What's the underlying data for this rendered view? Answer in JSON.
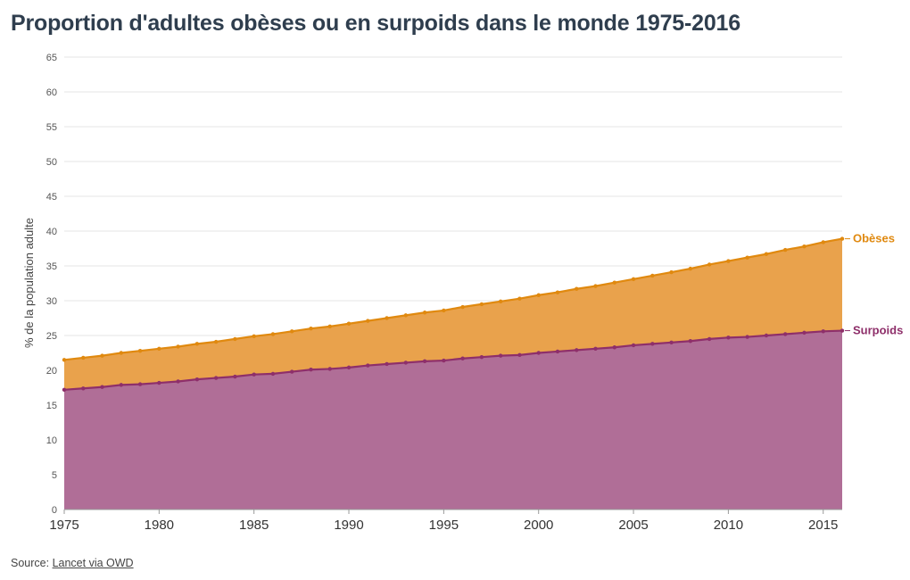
{
  "title": "Proportion d'adultes obèses ou en surpoids dans le monde 1975-2016",
  "source": {
    "prefix": "Source: ",
    "link_text": "Lancet via OWD"
  },
  "colors": {
    "surpoids": "#8e2f6a",
    "obeses": "#e0890f",
    "surpoids_fill": "#b06e97",
    "obeses_fill": "#e9a24c"
  },
  "chart_data": {
    "type": "area",
    "stacked": true,
    "ylabel": "% de la population adulte",
    "xlabel": "",
    "ylim": [
      0,
      65
    ],
    "xlim": [
      1975,
      2016
    ],
    "yticks": [
      0,
      5,
      10,
      15,
      20,
      25,
      30,
      35,
      40,
      45,
      50,
      55,
      60,
      65
    ],
    "xticks": [
      1975,
      1980,
      1985,
      1990,
      1995,
      2000,
      2005,
      2010,
      2015
    ],
    "grid": true,
    "x": [
      1975,
      1976,
      1977,
      1978,
      1979,
      1980,
      1981,
      1982,
      1983,
      1984,
      1985,
      1986,
      1987,
      1988,
      1989,
      1990,
      1991,
      1992,
      1993,
      1994,
      1995,
      1996,
      1997,
      1998,
      1999,
      2000,
      2001,
      2002,
      2003,
      2004,
      2005,
      2006,
      2007,
      2008,
      2009,
      2010,
      2011,
      2012,
      2013,
      2014,
      2015,
      2016
    ],
    "series": [
      {
        "name": "Surpoids",
        "values": [
          17.2,
          17.4,
          17.6,
          17.9,
          18.0,
          18.2,
          18.4,
          18.7,
          18.9,
          19.1,
          19.4,
          19.5,
          19.8,
          20.1,
          20.2,
          20.4,
          20.7,
          20.9,
          21.1,
          21.3,
          21.4,
          21.7,
          21.9,
          22.1,
          22.2,
          22.5,
          22.7,
          22.9,
          23.1,
          23.3,
          23.6,
          23.8,
          24.0,
          24.2,
          24.5,
          24.7,
          24.8,
          25.0,
          25.2,
          25.4,
          25.6,
          25.7
        ]
      },
      {
        "name": "Obèses",
        "values_cumulative": [
          21.5,
          21.8,
          22.1,
          22.5,
          22.8,
          23.1,
          23.4,
          23.8,
          24.1,
          24.5,
          24.9,
          25.2,
          25.6,
          26.0,
          26.3,
          26.7,
          27.1,
          27.5,
          27.9,
          28.3,
          28.6,
          29.1,
          29.5,
          29.9,
          30.3,
          30.8,
          31.2,
          31.7,
          32.1,
          32.6,
          33.1,
          33.6,
          34.1,
          34.6,
          35.2,
          35.7,
          36.2,
          36.7,
          37.3,
          37.8,
          38.4,
          38.9
        ]
      }
    ]
  }
}
